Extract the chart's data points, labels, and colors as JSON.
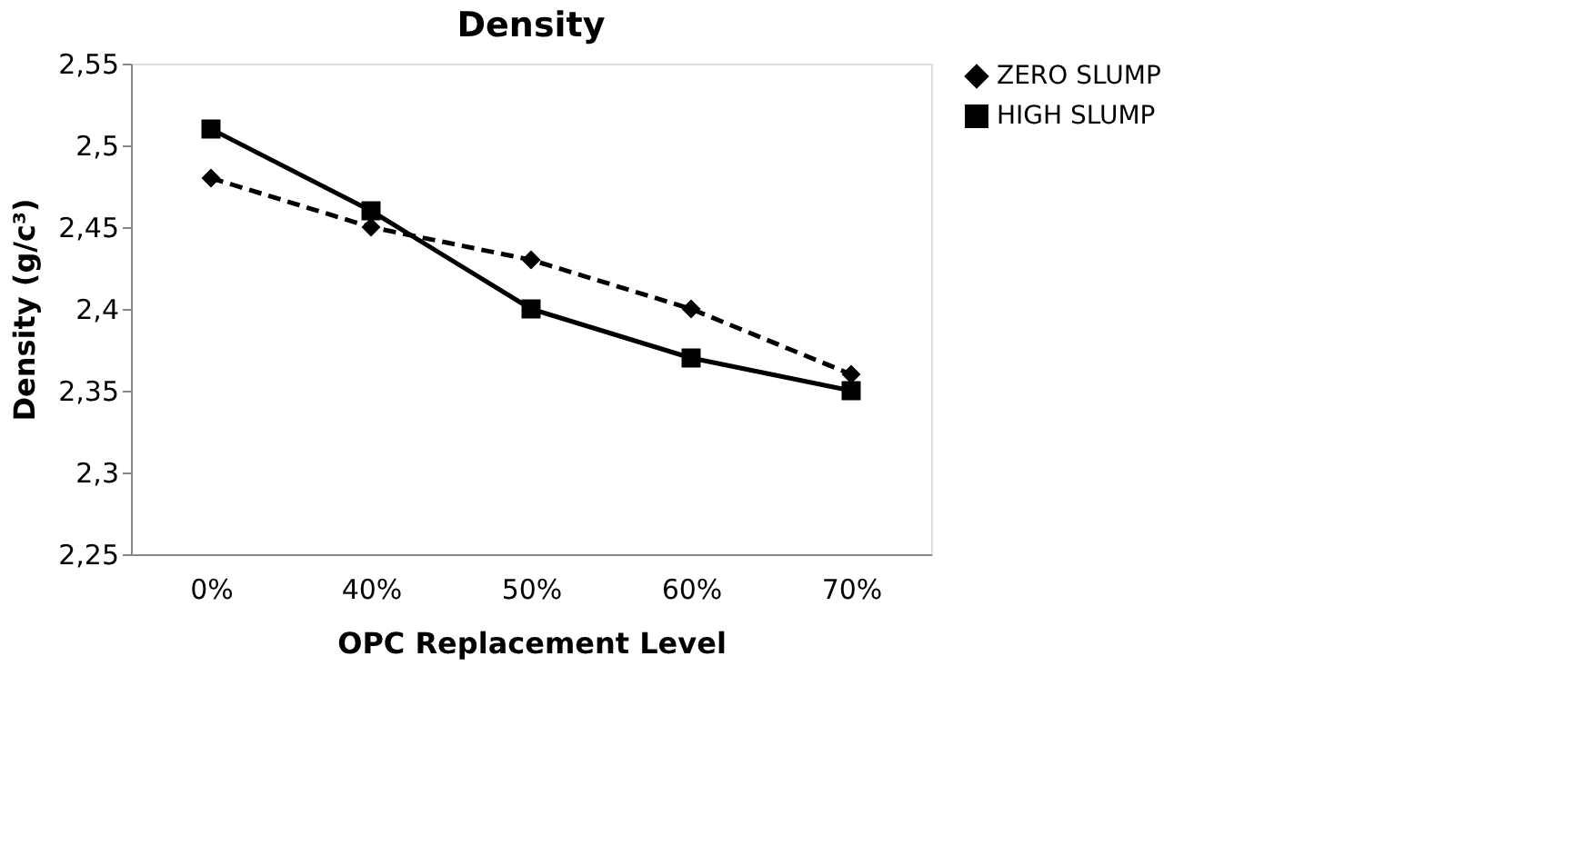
{
  "chart_data": {
    "type": "line",
    "title": "Density",
    "xlabel": "OPC Replacement Level",
    "ylabel": "Density  (g/c³)",
    "categories": [
      "0%",
      "40%",
      "50%",
      "60%",
      "70%"
    ],
    "series": [
      {
        "name": "ZERO SLUMP",
        "color": "#000000",
        "values": [
          2.48,
          2.45,
          2.43,
          2.4,
          2.36
        ],
        "marker": "diamond",
        "line_style": "dashed"
      },
      {
        "name": "HIGH SLUMP",
        "color": "#000000",
        "values": [
          2.51,
          2.46,
          2.4,
          2.37,
          2.35
        ],
        "marker": "square",
        "line_style": "solid"
      }
    ],
    "ylim": [
      2.25,
      2.55
    ],
    "yticks": [
      {
        "value": 2.25,
        "label": "2,25"
      },
      {
        "value": 2.3,
        "label": "2,3"
      },
      {
        "value": 2.35,
        "label": "2,35"
      },
      {
        "value": 2.4,
        "label": "2,4"
      },
      {
        "value": 2.45,
        "label": "2,45"
      },
      {
        "value": 2.5,
        "label": "2,5"
      },
      {
        "value": 2.55,
        "label": "2,55"
      }
    ],
    "grid": false,
    "legend": "right"
  }
}
